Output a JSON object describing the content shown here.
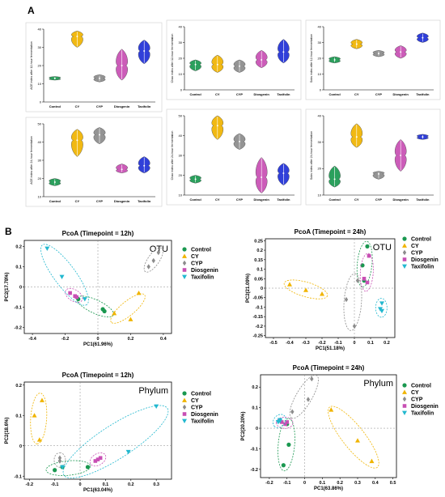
{
  "panel_labels": {
    "a": "A",
    "b": "B"
  },
  "colors": {
    "Control": "#1a9850",
    "CY": "#f0b400",
    "CYP": "#8c8c8c",
    "Diosgenin": "#c84fb4",
    "Taxifolin": "#1f2fd6",
    "Taxifolin_pcoa": "#22b8cf"
  },
  "chart_data": [
    {
      "type": "violin",
      "ylabel": "ACE index after 12-hour fermentation",
      "categories": [
        "Control",
        "CY",
        "CYP",
        "Diosgenin",
        "Taxifolin"
      ],
      "ylim": [
        0,
        40
      ],
      "yticks": [
        0,
        10,
        20,
        30,
        40
      ],
      "series": [
        {
          "name": "Control",
          "median": 13,
          "min": 12,
          "max": 14
        },
        {
          "name": "CY",
          "median": 36,
          "min": 30,
          "max": 39
        },
        {
          "name": "CYP",
          "median": 13,
          "min": 11,
          "max": 15
        },
        {
          "name": "Diosgenin",
          "median": 20,
          "min": 12,
          "max": 29
        },
        {
          "name": "Taxifolin",
          "median": 28,
          "min": 21,
          "max": 34
        }
      ]
    },
    {
      "type": "violin",
      "ylabel": "Chao index after 12-hour fermentation",
      "categories": [
        "Control",
        "CY",
        "CYP",
        "Diosgenin",
        "Taxifolin"
      ],
      "ylim": [
        0,
        40
      ],
      "yticks": [
        0,
        10,
        20,
        30,
        40
      ],
      "series": [
        {
          "name": "Control",
          "median": 16,
          "min": 12,
          "max": 19
        },
        {
          "name": "CY",
          "median": 16,
          "min": 11,
          "max": 22
        },
        {
          "name": "CYP",
          "median": 15,
          "min": 11,
          "max": 19
        },
        {
          "name": "Diosgenin",
          "median": 19,
          "min": 14,
          "max": 25
        },
        {
          "name": "Taxifolin",
          "median": 24,
          "min": 17,
          "max": 32
        }
      ]
    },
    {
      "type": "violin",
      "ylabel": "Sobs index after 12-hour fermentation",
      "categories": [
        "Control",
        "CY",
        "CYP",
        "Diosgenin",
        "Taxifolin"
      ],
      "ylim": [
        0,
        40
      ],
      "yticks": [
        0,
        10,
        20,
        30,
        40
      ],
      "series": [
        {
          "name": "Control",
          "median": 19,
          "min": 17,
          "max": 21
        },
        {
          "name": "CY",
          "median": 29,
          "min": 26,
          "max": 32
        },
        {
          "name": "CYP",
          "median": 23,
          "min": 21,
          "max": 25
        },
        {
          "name": "Diosgenin",
          "median": 24,
          "min": 20,
          "max": 28
        },
        {
          "name": "Taxifolin",
          "median": 33,
          "min": 30,
          "max": 36
        }
      ]
    },
    {
      "type": "violin",
      "ylabel": "ACE index after 24-hour fermentation",
      "categories": [
        "Control",
        "CY",
        "CYP",
        "Diosgenin",
        "Taxifolin"
      ],
      "ylim": [
        10,
        50
      ],
      "yticks": [
        10,
        20,
        30,
        40,
        50
      ],
      "series": [
        {
          "name": "Control",
          "median": 18,
          "min": 16,
          "max": 20
        },
        {
          "name": "CY",
          "median": 41,
          "min": 32,
          "max": 47
        },
        {
          "name": "CYP",
          "median": 44,
          "min": 39,
          "max": 48
        },
        {
          "name": "Diosgenin",
          "median": 25,
          "min": 23,
          "max": 28
        },
        {
          "name": "Taxifolin",
          "median": 27,
          "min": 23,
          "max": 32
        }
      ]
    },
    {
      "type": "violin",
      "ylabel": "Chao index after 24-hour fermentation",
      "categories": [
        "Control",
        "CY",
        "CYP",
        "Diosgenin",
        "Taxifolin"
      ],
      "ylim": [
        10,
        50
      ],
      "yticks": [
        10,
        20,
        30,
        40,
        50
      ],
      "series": [
        {
          "name": "Control",
          "median": 18,
          "min": 16,
          "max": 20
        },
        {
          "name": "CY",
          "median": 45,
          "min": 38,
          "max": 50
        },
        {
          "name": "CYP",
          "median": 37,
          "min": 33,
          "max": 41
        },
        {
          "name": "Diosgenin",
          "median": 19,
          "min": 11,
          "max": 29
        },
        {
          "name": "Taxifolin",
          "median": 21,
          "min": 15,
          "max": 26
        }
      ]
    },
    {
      "type": "violin",
      "ylabel": "Sobs index after 24-hour fermentation",
      "categories": [
        "Control",
        "CY",
        "CYP",
        "Diosgenin",
        "Taxifolin"
      ],
      "ylim": [
        10,
        40
      ],
      "yticks": [
        10,
        20,
        30,
        40
      ],
      "series": [
        {
          "name": "Control",
          "median": 16,
          "min": 13,
          "max": 21
        },
        {
          "name": "CY",
          "median": 32,
          "min": 28,
          "max": 37
        },
        {
          "name": "CYP",
          "median": 18,
          "min": 16,
          "max": 19
        },
        {
          "name": "Diosgenin",
          "median": 25,
          "min": 19,
          "max": 31
        },
        {
          "name": "Taxifolin",
          "median": 32,
          "min": 31,
          "max": 33
        }
      ]
    },
    {
      "type": "scatter",
      "title": "PcoA (Timepoint = 12h)",
      "tag": "OTU",
      "xlabel": "PC1(61.96%)",
      "ylabel": "PC2(17.78%)",
      "xlim": [
        -0.45,
        0.45
      ],
      "ylim": [
        -0.23,
        0.23
      ],
      "xticks": [
        -0.4,
        -0.2,
        0,
        0.2,
        0.4
      ],
      "yticks": [
        -0.2,
        -0.1,
        0,
        0.1,
        0.2
      ],
      "series": [
        {
          "name": "Control",
          "points": [
            [
              -0.12,
              -0.06
            ],
            [
              0.04,
              -0.12
            ],
            [
              0.03,
              -0.11
            ]
          ]
        },
        {
          "name": "CY",
          "points": [
            [
              0.25,
              -0.03
            ],
            [
              0.1,
              -0.13
            ],
            [
              0.2,
              -0.16
            ]
          ]
        },
        {
          "name": "CYP",
          "points": [
            [
              0.37,
              0.17
            ],
            [
              0.34,
              0.13
            ],
            [
              0.31,
              0.1
            ]
          ]
        },
        {
          "name": "Diosgenin",
          "points": [
            [
              -0.17,
              -0.03
            ],
            [
              -0.14,
              -0.045
            ],
            [
              -0.13,
              -0.05
            ]
          ]
        },
        {
          "name": "Taxifolin",
          "points": [
            [
              -0.31,
              0.19
            ],
            [
              -0.22,
              0.05
            ],
            [
              -0.08,
              -0.06
            ]
          ]
        }
      ]
    },
    {
      "type": "scatter",
      "title": "PcoA (Timepoint = 24h)",
      "tag": "OTU",
      "xlabel": "PC1(51.18%)",
      "ylabel": "PC2(21.09%)",
      "xlim": [
        -0.55,
        0.25
      ],
      "ylim": [
        -0.26,
        0.26
      ],
      "xticks": [
        -0.5,
        -0.4,
        -0.3,
        -0.2,
        -0.1,
        0,
        0.1,
        0.2
      ],
      "yticks": [
        -0.25,
        -0.2,
        -0.15,
        -0.1,
        -0.05,
        0,
        0.05,
        0.1,
        0.15,
        0.2,
        0.25
      ],
      "series": [
        {
          "name": "Control",
          "points": [
            [
              0.08,
              0.22
            ],
            [
              0.05,
              0.12
            ],
            [
              0.06,
              0.04
            ]
          ]
        },
        {
          "name": "CY",
          "points": [
            [
              -0.4,
              0.02
            ],
            [
              -0.3,
              -0.01
            ],
            [
              -0.2,
              -0.03
            ]
          ]
        },
        {
          "name": "CYP",
          "points": [
            [
              -0.05,
              -0.06
            ],
            [
              0,
              -0.2
            ],
            [
              0.02,
              0.04
            ]
          ]
        },
        {
          "name": "Diosgenin",
          "points": [
            [
              0.09,
              0.17
            ],
            [
              0.06,
              0.05
            ],
            [
              0.08,
              0.03
            ]
          ]
        },
        {
          "name": "Taxifolin",
          "points": [
            [
              0.17,
              -0.08
            ],
            [
              0.17,
              -0.12
            ],
            [
              0.16,
              -0.11
            ]
          ]
        }
      ]
    },
    {
      "type": "scatter",
      "title": "PcoA (Timepoint = 12h)",
      "tag": "Phylum",
      "xlabel": "PC1(63.04%)",
      "ylabel": "PC2(18.6%)",
      "xlim": [
        -0.22,
        0.36
      ],
      "ylim": [
        -0.11,
        0.21
      ],
      "xticks": [
        -0.2,
        -0.1,
        0,
        0.1,
        0.2,
        0.3
      ],
      "yticks": [
        -0.1,
        0,
        0.1,
        0.2
      ],
      "series": [
        {
          "name": "Control",
          "points": [
            [
              -0.1,
              -0.08
            ],
            [
              -0.07,
              -0.07
            ],
            [
              0.03,
              -0.07
            ]
          ]
        },
        {
          "name": "CY",
          "points": [
            [
              -0.15,
              0.15
            ],
            [
              -0.18,
              0.1
            ],
            [
              -0.16,
              0.02
            ]
          ]
        },
        {
          "name": "CYP",
          "points": [
            [
              -0.08,
              -0.05
            ],
            [
              -0.08,
              -0.04
            ],
            [
              -0.08,
              -0.05
            ]
          ]
        },
        {
          "name": "Diosgenin",
          "points": [
            [
              0.06,
              -0.05
            ],
            [
              0.08,
              -0.04
            ],
            [
              0.07,
              -0.045
            ]
          ]
        },
        {
          "name": "Taxifolin",
          "points": [
            [
              -0.07,
              -0.07
            ],
            [
              0.19,
              -0.02
            ],
            [
              0.3,
              0.13
            ]
          ]
        }
      ]
    },
    {
      "type": "scatter",
      "title": "PcoA (Timepoint = 24h)",
      "tag": "Phylum",
      "xlabel": "PC1(63.86%)",
      "ylabel": "PC2(20.20%)",
      "xlim": [
        -0.25,
        0.52
      ],
      "ylim": [
        -0.24,
        0.26
      ],
      "xticks": [
        -0.2,
        -0.1,
        0,
        0.1,
        0.2,
        0.3,
        0.4,
        0.5
      ],
      "yticks": [
        -0.2,
        -0.1,
        0,
        0.1,
        0.2
      ],
      "series": [
        {
          "name": "Control",
          "points": [
            [
              -0.12,
              -0.18
            ],
            [
              -0.09,
              -0.08
            ],
            [
              -0.1,
              0.02
            ]
          ]
        },
        {
          "name": "CY",
          "points": [
            [
              0.15,
              0.09
            ],
            [
              0.3,
              -0.06
            ],
            [
              0.38,
              -0.16
            ]
          ]
        },
        {
          "name": "CYP",
          "points": [
            [
              0.04,
              0.24
            ],
            [
              -0.07,
              0.08
            ],
            [
              0.02,
              0.14
            ]
          ]
        },
        {
          "name": "Diosgenin",
          "points": [
            [
              -0.1,
              0.03
            ],
            [
              -0.11,
              0.02
            ],
            [
              -0.13,
              0.03
            ]
          ]
        },
        {
          "name": "Taxifolin",
          "points": [
            [
              -0.14,
              0.04
            ],
            [
              -0.15,
              0.03
            ],
            [
              -0.14,
              0.035
            ]
          ]
        }
      ]
    }
  ],
  "legend": [
    "Control",
    "CY",
    "CYP",
    "Diosgenin",
    "Taxifolin"
  ]
}
